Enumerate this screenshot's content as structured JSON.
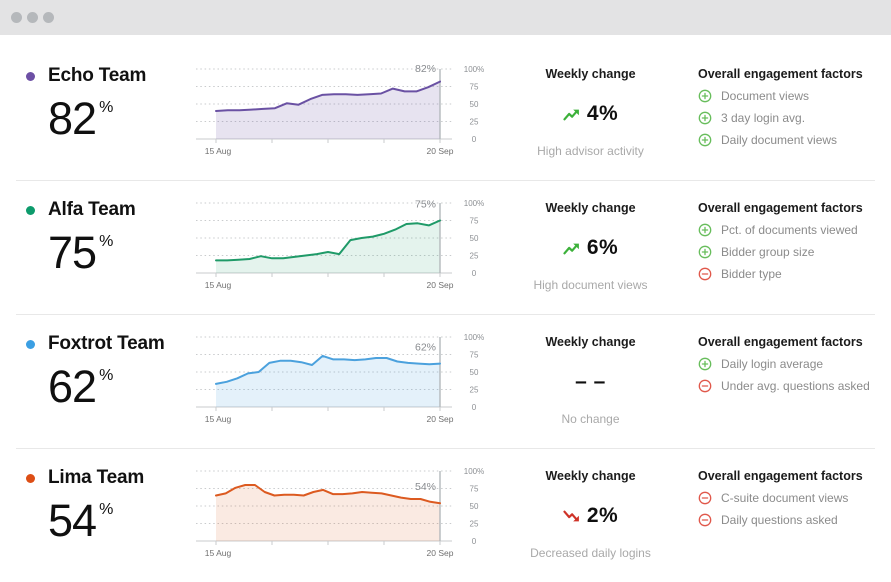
{
  "window": {
    "kind": "app-window"
  },
  "columns": {
    "weekly_header": "Weekly change",
    "factors_header": "Overall engagement factors"
  },
  "colors": {
    "titlebar": "#e3e3e4",
    "titlebar_dots": "#b5b8bb",
    "divider": "#e8e8e8",
    "plus_icon": "#67bd5b",
    "minus_icon": "#e0574a",
    "trend_up": "#3cb13a",
    "trend_down": "#cf3328",
    "gridline": "#c9cbcd",
    "end_line": "#b4b8bc"
  },
  "teams": [
    {
      "name": "Echo Team",
      "value": "82",
      "value_suffix": "%",
      "dot_color": "#6d50a5",
      "weekly": {
        "direction": "up",
        "value": "4%",
        "note": "High advisor activity"
      },
      "factors": [
        {
          "sign": "plus",
          "label": "Document views"
        },
        {
          "sign": "plus",
          "label": "3 day login avg."
        },
        {
          "sign": "plus",
          "label": "Daily document views"
        }
      ]
    },
    {
      "name": "Alfa Team",
      "value": "75",
      "value_suffix": "%",
      "dot_color": "#0d9b6c",
      "weekly": {
        "direction": "up",
        "value": "6%",
        "note": "High document views"
      },
      "factors": [
        {
          "sign": "plus",
          "label": "Pct. of documents viewed"
        },
        {
          "sign": "plus",
          "label": "Bidder group size"
        },
        {
          "sign": "minus",
          "label": "Bidder type"
        }
      ]
    },
    {
      "name": "Foxtrot Team",
      "value": "62",
      "value_suffix": "%",
      "dot_color": "#3b9fe3",
      "weekly": {
        "direction": "none",
        "value": "– –",
        "note": "No change"
      },
      "factors": [
        {
          "sign": "plus",
          "label": "Daily login average"
        },
        {
          "sign": "minus",
          "label": "Under avg. questions asked"
        }
      ]
    },
    {
      "name": "Lima Team",
      "value": "54",
      "value_suffix": "%",
      "dot_color": "#dd4e15",
      "weekly": {
        "direction": "down",
        "value": "2%",
        "note": "Decreased daily logins"
      },
      "factors": [
        {
          "sign": "minus",
          "label": "C-suite document views"
        },
        {
          "sign": "minus",
          "label": "Daily questions asked"
        }
      ]
    }
  ],
  "chart_data": [
    {
      "type": "area",
      "title": "Echo Team engagement trend",
      "x_start": "15 Aug",
      "x_end": "20 Sep",
      "ylim": [
        0,
        100
      ],
      "y_ticks": [
        "100%",
        "75",
        "50",
        "25",
        "0"
      ],
      "grid": true,
      "end_label": "82%",
      "fill_opacity": 0.16,
      "series": [
        {
          "name": "Echo Team",
          "color": "#6a51a3",
          "values": [
            40,
            41,
            41,
            42,
            43,
            44,
            51,
            49,
            57,
            63,
            64,
            64,
            63,
            64,
            65,
            72,
            68,
            68,
            74,
            82
          ]
        }
      ]
    },
    {
      "type": "area",
      "title": "Alfa Team engagement trend",
      "x_start": "15 Aug",
      "x_end": "20 Sep",
      "ylim": [
        0,
        100
      ],
      "y_ticks": [
        "100%",
        "75",
        "50",
        "25",
        "0"
      ],
      "grid": true,
      "end_label": "75%",
      "fill_opacity": 0.12,
      "series": [
        {
          "name": "Alfa Team",
          "color": "#1f9a68",
          "values": [
            18,
            18,
            19,
            20,
            24,
            21,
            21,
            23,
            25,
            27,
            30,
            27,
            47,
            50,
            52,
            56,
            62,
            70,
            71,
            68,
            75
          ]
        }
      ]
    },
    {
      "type": "area",
      "title": "Foxtrot Team engagement trend",
      "x_start": "15 Aug",
      "x_end": "20 Sep",
      "ylim": [
        0,
        100
      ],
      "y_ticks": [
        "100%",
        "75",
        "50",
        "25",
        "0"
      ],
      "grid": true,
      "end_label": "62%",
      "fill_opacity": 0.15,
      "series": [
        {
          "name": "Foxtrot Team",
          "color": "#4ba1dd",
          "values": [
            33,
            36,
            41,
            48,
            50,
            63,
            66,
            66,
            64,
            60,
            73,
            68,
            68,
            67,
            68,
            70,
            70,
            65,
            63,
            62,
            61,
            62
          ]
        }
      ]
    },
    {
      "type": "area",
      "title": "Lima Team engagement trend",
      "x_start": "15 Aug",
      "x_end": "20 Sep",
      "ylim": [
        0,
        100
      ],
      "y_ticks": [
        "100%",
        "75",
        "50",
        "25",
        "0"
      ],
      "grid": true,
      "end_label": "54%",
      "fill_opacity": 0.13,
      "series": [
        {
          "name": "Lima Team",
          "color": "#dc5a20",
          "values": [
            65,
            68,
            76,
            80,
            80,
            70,
            65,
            66,
            66,
            65,
            70,
            73,
            67,
            67,
            68,
            70,
            69,
            68,
            65,
            62,
            60,
            60,
            56,
            54
          ]
        }
      ]
    }
  ]
}
